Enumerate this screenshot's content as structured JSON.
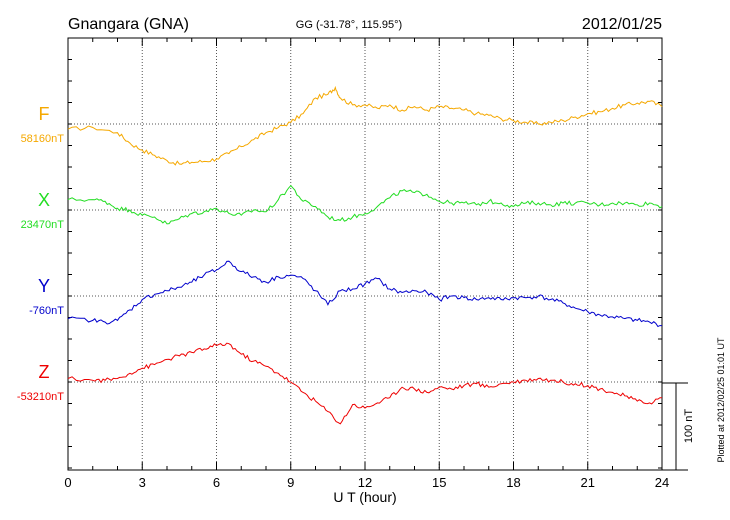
{
  "header": {
    "station": "Gnangara (GNA)",
    "coords": "GG (-31.78°, 115.95°)",
    "date": "2012/01/25"
  },
  "footer": {
    "plotted": "Plotted at 2012/02/25 01:01  UT"
  },
  "chart_data": {
    "type": "line",
    "xlabel": "U T (hour)",
    "xlim": [
      0,
      24
    ],
    "xticks": [
      0,
      3,
      6,
      9,
      12,
      15,
      18,
      21,
      24
    ],
    "xtick_labels": [
      "0",
      "3",
      "6",
      "9",
      "12",
      "15",
      "18",
      "21",
      "24"
    ],
    "grid": true,
    "scale_bar": {
      "value": 100,
      "label": "100 nT"
    },
    "series": [
      {
        "name": "F",
        "baseline_label": "58160nT",
        "color": "#f5a800",
        "points": [
          [
            0,
            -6
          ],
          [
            1,
            -4
          ],
          [
            2,
            -10
          ],
          [
            2.5,
            -22
          ],
          [
            3,
            -30
          ],
          [
            3.5,
            -36
          ],
          [
            4,
            -42
          ],
          [
            4.5,
            -46
          ],
          [
            5,
            -44
          ],
          [
            5.5,
            -43
          ],
          [
            6,
            -40
          ],
          [
            6.5,
            -34
          ],
          [
            7,
            -26
          ],
          [
            7.5,
            -18
          ],
          [
            8,
            -10
          ],
          [
            8.5,
            -4
          ],
          [
            9,
            2
          ],
          [
            9.5,
            12
          ],
          [
            10,
            30
          ],
          [
            10.5,
            34
          ],
          [
            10.8,
            42
          ],
          [
            11,
            30
          ],
          [
            11.5,
            22
          ],
          [
            12,
            22
          ],
          [
            12.5,
            18
          ],
          [
            13,
            22
          ],
          [
            13.5,
            16
          ],
          [
            14,
            20
          ],
          [
            14.5,
            16
          ],
          [
            15,
            20
          ],
          [
            15.5,
            18
          ],
          [
            16,
            16
          ],
          [
            16.5,
            12
          ],
          [
            17,
            10
          ],
          [
            17.5,
            6
          ],
          [
            18,
            4
          ],
          [
            18.5,
            2
          ],
          [
            19,
            0
          ],
          [
            19.5,
            2
          ],
          [
            20,
            4
          ],
          [
            20.5,
            8
          ],
          [
            21,
            12
          ],
          [
            21.5,
            14
          ],
          [
            22,
            18
          ],
          [
            22.5,
            22
          ],
          [
            23,
            24
          ],
          [
            23.5,
            26
          ],
          [
            24,
            20
          ]
        ]
      },
      {
        "name": "X",
        "baseline_label": "23470nT",
        "color": "#22dd22",
        "points": [
          [
            0,
            12
          ],
          [
            1,
            12
          ],
          [
            1.5,
            10
          ],
          [
            2,
            2
          ],
          [
            2.5,
            0
          ],
          [
            3,
            -6
          ],
          [
            3.5,
            -8
          ],
          [
            4,
            -16
          ],
          [
            4.5,
            -10
          ],
          [
            5,
            -4
          ],
          [
            5.5,
            -2
          ],
          [
            6,
            2
          ],
          [
            6.5,
            -4
          ],
          [
            7,
            -6
          ],
          [
            7.5,
            0
          ],
          [
            8,
            -2
          ],
          [
            8.5,
            12
          ],
          [
            9,
            28
          ],
          [
            9.5,
            10
          ],
          [
            10,
            4
          ],
          [
            10.5,
            -8
          ],
          [
            11,
            -12
          ],
          [
            11.5,
            -8
          ],
          [
            12,
            -4
          ],
          [
            12.5,
            4
          ],
          [
            13,
            14
          ],
          [
            13.5,
            22
          ],
          [
            14,
            20
          ],
          [
            14.5,
            18
          ],
          [
            15,
            10
          ],
          [
            15.5,
            8
          ],
          [
            16,
            8
          ],
          [
            16.5,
            6
          ],
          [
            17,
            10
          ],
          [
            17.5,
            8
          ],
          [
            18,
            4
          ],
          [
            18.5,
            8
          ],
          [
            19,
            8
          ],
          [
            19.5,
            6
          ],
          [
            20,
            8
          ],
          [
            20.5,
            8
          ],
          [
            21,
            8
          ],
          [
            21.5,
            6
          ],
          [
            22,
            8
          ],
          [
            22.5,
            8
          ],
          [
            23,
            6
          ],
          [
            23.5,
            8
          ],
          [
            24,
            4
          ]
        ]
      },
      {
        "name": "Y",
        "baseline_label": "-760nT",
        "color": "#0000cc",
        "points": [
          [
            0,
            -26
          ],
          [
            1,
            -28
          ],
          [
            1.5,
            -30
          ],
          [
            2,
            -28
          ],
          [
            2.5,
            -16
          ],
          [
            3,
            -4
          ],
          [
            3.5,
            2
          ],
          [
            4,
            6
          ],
          [
            4.5,
            10
          ],
          [
            5,
            16
          ],
          [
            5.5,
            24
          ],
          [
            6,
            30
          ],
          [
            6.5,
            40
          ],
          [
            7,
            28
          ],
          [
            7.5,
            22
          ],
          [
            8,
            16
          ],
          [
            8.5,
            22
          ],
          [
            9,
            24
          ],
          [
            9.5,
            20
          ],
          [
            10,
            6
          ],
          [
            10.5,
            -10
          ],
          [
            11,
            6
          ],
          [
            11.5,
            8
          ],
          [
            12,
            14
          ],
          [
            12.5,
            20
          ],
          [
            13,
            8
          ],
          [
            13.5,
            4
          ],
          [
            14,
            6
          ],
          [
            14.5,
            4
          ],
          [
            15,
            -4
          ],
          [
            15.5,
            0
          ],
          [
            16,
            -2
          ],
          [
            16.5,
            -4
          ],
          [
            17,
            -2
          ],
          [
            17.5,
            -4
          ],
          [
            18,
            -2
          ],
          [
            18.5,
            -2
          ],
          [
            19,
            0
          ],
          [
            19.5,
            -4
          ],
          [
            20,
            -8
          ],
          [
            20.5,
            -14
          ],
          [
            21,
            -18
          ],
          [
            21.5,
            -22
          ],
          [
            22,
            -24
          ],
          [
            22.5,
            -26
          ],
          [
            23,
            -28
          ],
          [
            23.5,
            -30
          ],
          [
            24,
            -34
          ]
        ]
      },
      {
        "name": "Z",
        "baseline_label": "-53210nT",
        "color": "#ee0000",
        "points": [
          [
            0,
            4
          ],
          [
            1,
            2
          ],
          [
            1.5,
            2
          ],
          [
            2,
            4
          ],
          [
            2.5,
            10
          ],
          [
            3,
            16
          ],
          [
            3.5,
            20
          ],
          [
            4,
            26
          ],
          [
            4.5,
            30
          ],
          [
            5,
            34
          ],
          [
            5.5,
            38
          ],
          [
            6,
            42
          ],
          [
            6.5,
            44
          ],
          [
            7,
            32
          ],
          [
            7.5,
            24
          ],
          [
            8,
            18
          ],
          [
            8.5,
            10
          ],
          [
            9,
            0
          ],
          [
            9.5,
            -12
          ],
          [
            10,
            -22
          ],
          [
            10.5,
            -34
          ],
          [
            11,
            -48
          ],
          [
            11.5,
            -26
          ],
          [
            12,
            -30
          ],
          [
            12.5,
            -24
          ],
          [
            13,
            -18
          ],
          [
            13.5,
            -6
          ],
          [
            14,
            -8
          ],
          [
            14.5,
            -12
          ],
          [
            15,
            -6
          ],
          [
            15.5,
            -8
          ],
          [
            16,
            -4
          ],
          [
            16.5,
            -2
          ],
          [
            17,
            -6
          ],
          [
            17.5,
            -2
          ],
          [
            18,
            0
          ],
          [
            18.5,
            2
          ],
          [
            19,
            4
          ],
          [
            19.5,
            2
          ],
          [
            20,
            0
          ],
          [
            20.5,
            -2
          ],
          [
            21,
            -4
          ],
          [
            21.5,
            -8
          ],
          [
            22,
            -12
          ],
          [
            22.5,
            -16
          ],
          [
            23,
            -22
          ],
          [
            23.5,
            -24
          ],
          [
            24,
            -18
          ]
        ]
      }
    ]
  }
}
